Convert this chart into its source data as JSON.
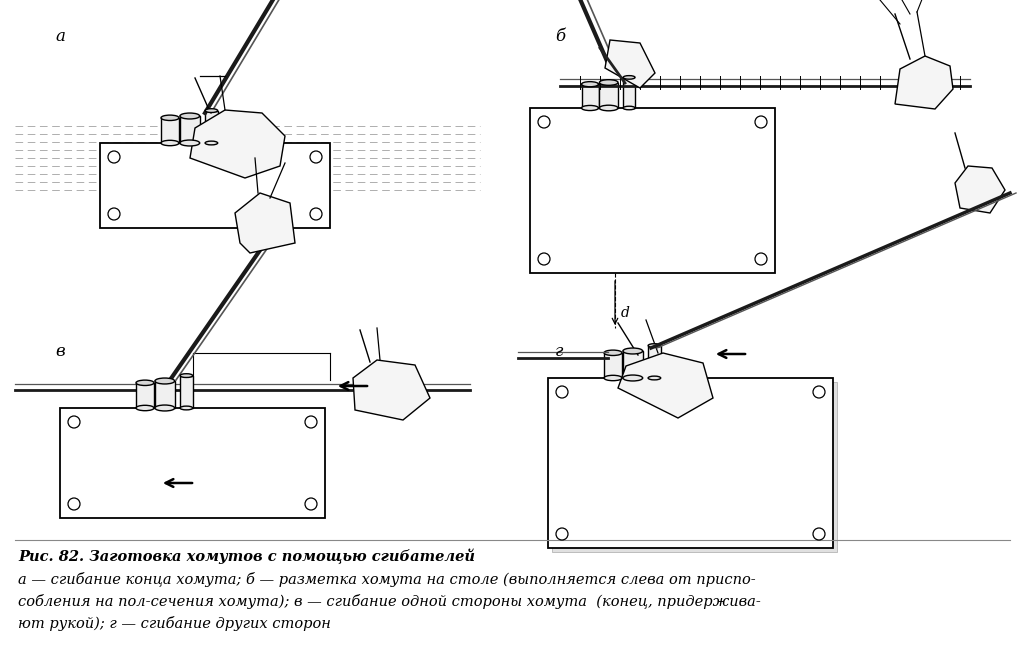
{
  "background_color": "#ffffff",
  "title_line1": "Рис. 82. Заготовка хомутов с помощью сгибателей",
  "title_line2": "а — сгибание конца хомута; б — разметка хомута на столе (выполняется слева от приспо-",
  "title_line3": "собления на пол-сечения хомута); в — сгибание одной стороны хомута  (конец, придержива-",
  "title_line4": "ют рукой); г — сгибание других сторон",
  "label_a": "а",
  "label_b": "б",
  "label_v": "в",
  "label_g": "г",
  "fig_width": 10.24,
  "fig_height": 6.48,
  "text_fontsize": 10.0,
  "label_fontsize": 12
}
